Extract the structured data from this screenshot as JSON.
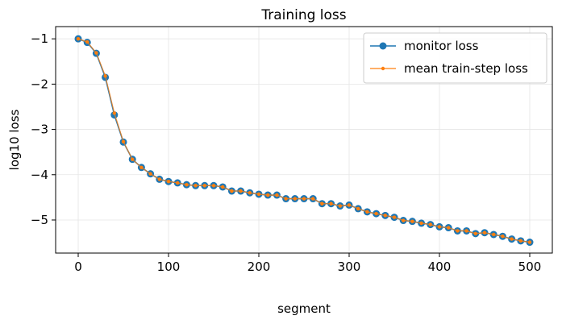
{
  "chart_data": {
    "type": "line",
    "title": "Training loss",
    "xlabel": "segment",
    "ylabel": "log10 loss",
    "xlim": [
      -25,
      525
    ],
    "ylim": [
      -5.73,
      -0.73
    ],
    "xticks": [
      0,
      100,
      200,
      300,
      400,
      500
    ],
    "yticks": [
      -1,
      -2,
      -3,
      -4,
      -5
    ],
    "xtick_labels": [
      "0",
      "100",
      "200",
      "300",
      "400",
      "500"
    ],
    "ytick_labels": [
      "−1",
      "−2",
      "−3",
      "−4",
      "−5"
    ],
    "grid": true,
    "legend_position": "top-right",
    "colors": {
      "monitor": "#1f77b4",
      "train": "#ff7f0e",
      "grid": "#e5e5e5",
      "frame": "#000000"
    },
    "x": [
      0,
      10,
      20,
      30,
      40,
      50,
      60,
      70,
      80,
      90,
      100,
      110,
      120,
      130,
      140,
      150,
      160,
      170,
      180,
      190,
      200,
      210,
      220,
      230,
      240,
      250,
      260,
      270,
      280,
      290,
      300,
      310,
      320,
      330,
      340,
      350,
      360,
      370,
      380,
      390,
      400,
      410,
      420,
      430,
      440,
      450,
      460,
      470,
      480,
      490,
      500
    ],
    "series": [
      {
        "name": "monitor loss",
        "marker": "circle",
        "values": [
          -1.0,
          -1.08,
          -1.32,
          -1.85,
          -2.68,
          -3.28,
          -3.66,
          -3.84,
          -3.98,
          -4.1,
          -4.15,
          -4.18,
          -4.22,
          -4.24,
          -4.24,
          -4.24,
          -4.27,
          -4.36,
          -4.36,
          -4.4,
          -4.43,
          -4.45,
          -4.45,
          -4.53,
          -4.53,
          -4.53,
          -4.53,
          -4.64,
          -4.64,
          -4.69,
          -4.67,
          -4.75,
          -4.82,
          -4.86,
          -4.9,
          -4.94,
          -5.01,
          -5.03,
          -5.07,
          -5.1,
          -5.15,
          -5.17,
          -5.24,
          -5.24,
          -5.3,
          -5.28,
          -5.32,
          -5.36,
          -5.42,
          -5.46,
          -5.49
        ]
      },
      {
        "name": "mean train-step loss",
        "marker": "point",
        "values": [
          -1.0,
          -1.07,
          -1.31,
          -1.82,
          -2.64,
          -3.27,
          -3.66,
          -3.84,
          -3.98,
          -4.1,
          -4.15,
          -4.18,
          -4.22,
          -4.24,
          -4.24,
          -4.24,
          -4.27,
          -4.36,
          -4.36,
          -4.4,
          -4.43,
          -4.45,
          -4.45,
          -4.53,
          -4.53,
          -4.53,
          -4.53,
          -4.64,
          -4.64,
          -4.69,
          -4.67,
          -4.75,
          -4.82,
          -4.86,
          -4.9,
          -4.94,
          -5.01,
          -5.03,
          -5.07,
          -5.1,
          -5.15,
          -5.17,
          -5.24,
          -5.24,
          -5.3,
          -5.28,
          -5.32,
          -5.36,
          -5.42,
          -5.46,
          -5.49
        ]
      }
    ]
  }
}
